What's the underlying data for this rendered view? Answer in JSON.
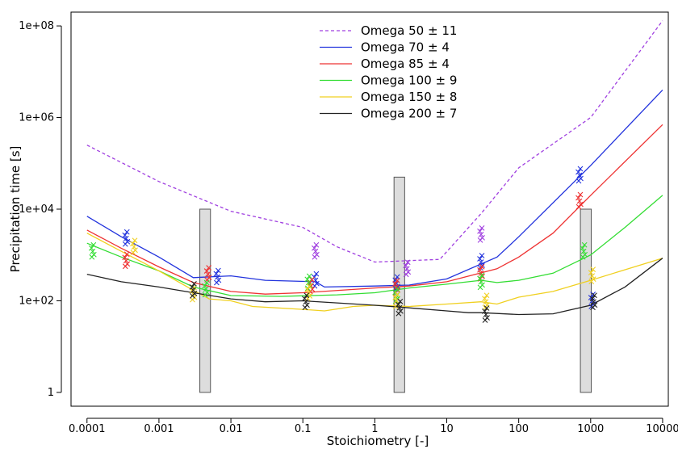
{
  "chart_data": {
    "type": "line",
    "xlabel": "Stoichiometry [-]",
    "ylabel": "Precipitation time [s]",
    "x_scale": "log",
    "y_scale": "log",
    "xlim": [
      6e-05,
      12000
    ],
    "ylim": [
      0.5,
      200000000
    ],
    "x_ticks": [
      {
        "value": 0.0001,
        "label": "0.0001"
      },
      {
        "value": 0.001,
        "label": "0.001"
      },
      {
        "value": 0.01,
        "label": "0.01"
      },
      {
        "value": 0.1,
        "label": "0.1"
      },
      {
        "value": 1,
        "label": "1"
      },
      {
        "value": 10,
        "label": "10"
      },
      {
        "value": 100,
        "label": "100"
      },
      {
        "value": 1000,
        "label": "1000"
      },
      {
        "value": 10000,
        "label": "10000"
      }
    ],
    "y_ticks": [
      {
        "value": 1,
        "label": "1"
      },
      {
        "value": 100,
        "label": "1e+02"
      },
      {
        "value": 10000,
        "label": "1e+04"
      },
      {
        "value": 1000000,
        "label": "1e+06"
      },
      {
        "value": 100000000,
        "label": "1e+08"
      }
    ],
    "grid": false,
    "legend_position": "top-center",
    "series": [
      {
        "name": "Omega 50 ± 11",
        "color": "#a040e0",
        "dash": "dashed",
        "line": [
          [
            0.0001,
            250000
          ],
          [
            0.001,
            40000
          ],
          [
            0.01,
            9000
          ],
          [
            0.1,
            4000
          ],
          [
            0.3,
            1500
          ],
          [
            1,
            700
          ],
          [
            8,
            800
          ],
          [
            30,
            8000
          ],
          [
            100,
            80000
          ],
          [
            1000,
            1000000
          ],
          [
            10000,
            130000000
          ]
        ],
        "points": [
          [
            0.15,
            1200
          ],
          [
            2.8,
            500
          ],
          [
            30,
            2800
          ]
        ]
      },
      {
        "name": "Omega 70 ± 4",
        "color": "#2233dd",
        "dash": "solid",
        "line": [
          [
            0.0001,
            7000
          ],
          [
            0.0003,
            2500
          ],
          [
            0.001,
            900
          ],
          [
            0.003,
            320
          ],
          [
            0.01,
            350
          ],
          [
            0.03,
            280
          ],
          [
            0.15,
            260
          ],
          [
            0.2,
            200
          ],
          [
            1,
            210
          ],
          [
            3,
            220
          ],
          [
            10,
            300
          ],
          [
            50,
            900
          ],
          [
            100,
            2500
          ],
          [
            1000,
            90000
          ],
          [
            10000,
            4000000
          ]
        ],
        "points": [
          [
            0.00035,
            2300
          ],
          [
            0.0065,
            330
          ],
          [
            0.15,
            280
          ],
          [
            2,
            240
          ],
          [
            30,
            700
          ],
          [
            700,
            55000
          ],
          [
            1050,
            100
          ]
        ]
      },
      {
        "name": "Omega 85 ± 4",
        "color": "#ee3333",
        "dash": "solid",
        "line": [
          [
            0.0001,
            3500
          ],
          [
            0.0003,
            1400
          ],
          [
            0.001,
            550
          ],
          [
            0.003,
            250
          ],
          [
            0.01,
            160
          ],
          [
            0.03,
            140
          ],
          [
            0.1,
            150
          ],
          [
            1,
            190
          ],
          [
            3,
            210
          ],
          [
            10,
            260
          ],
          [
            50,
            500
          ],
          [
            100,
            900
          ],
          [
            300,
            3000
          ],
          [
            1000,
            20000
          ],
          [
            10000,
            700000
          ]
        ],
        "points": [
          [
            0.00035,
            750
          ],
          [
            0.0048,
            380
          ],
          [
            0.13,
            210
          ],
          [
            2,
            200
          ],
          [
            30,
            400
          ],
          [
            700,
            15000
          ]
        ]
      },
      {
        "name": "Omega 100 ± 9",
        "color": "#33dd33",
        "dash": "solid",
        "line": [
          [
            0.0001,
            1800
          ],
          [
            0.0003,
            900
          ],
          [
            0.001,
            450
          ],
          [
            0.003,
            200
          ],
          [
            0.01,
            130
          ],
          [
            0.05,
            125
          ],
          [
            0.3,
            135
          ],
          [
            1,
            150
          ],
          [
            3,
            190
          ],
          [
            10,
            230
          ],
          [
            30,
            280
          ],
          [
            50,
            250
          ],
          [
            100,
            280
          ],
          [
            300,
            400
          ],
          [
            1000,
            1000
          ],
          [
            3000,
            4000
          ],
          [
            10000,
            20000
          ]
        ],
        "points": [
          [
            0.00012,
            1200
          ],
          [
            0.0045,
            180
          ],
          [
            0.12,
            250
          ],
          [
            2,
            130
          ],
          [
            30,
            260
          ],
          [
            800,
            1200
          ]
        ]
      },
      {
        "name": "Omega 150 ± 8",
        "color": "#f0d020",
        "dash": "solid",
        "line": [
          [
            0.0001,
            3000
          ],
          [
            0.0003,
            1200
          ],
          [
            0.001,
            450
          ],
          [
            0.003,
            170
          ],
          [
            0.005,
            110
          ],
          [
            0.01,
            100
          ],
          [
            0.02,
            75
          ],
          [
            0.1,
            65
          ],
          [
            0.2,
            60
          ],
          [
            0.5,
            75
          ],
          [
            1,
            80
          ],
          [
            3,
            75
          ],
          [
            10,
            85
          ],
          [
            30,
            95
          ],
          [
            50,
            85
          ],
          [
            100,
            120
          ],
          [
            300,
            160
          ],
          [
            1000,
            280
          ],
          [
            10000,
            850
          ]
        ],
        "points": [
          [
            0.00045,
            1500
          ],
          [
            0.003,
            140
          ],
          [
            0.12,
            150
          ],
          [
            2,
            100
          ],
          [
            35,
            95
          ],
          [
            1050,
            350
          ]
        ]
      },
      {
        "name": "Omega 200 ± 7",
        "color": "#222222",
        "dash": "solid",
        "line": [
          [
            0.0001,
            380
          ],
          [
            0.0003,
            260
          ],
          [
            0.001,
            200
          ],
          [
            0.003,
            150
          ],
          [
            0.01,
            110
          ],
          [
            0.03,
            95
          ],
          [
            0.1,
            100
          ],
          [
            0.3,
            90
          ],
          [
            1,
            80
          ],
          [
            3,
            70
          ],
          [
            10,
            60
          ],
          [
            20,
            55
          ],
          [
            30,
            55
          ],
          [
            100,
            50
          ],
          [
            300,
            52
          ],
          [
            1000,
            80
          ],
          [
            3000,
            200
          ],
          [
            10000,
            850
          ]
        ],
        "points": [
          [
            0.003,
            170
          ],
          [
            0.11,
            95
          ],
          [
            2.2,
            70
          ],
          [
            35,
            50
          ],
          [
            1100,
            95
          ]
        ]
      }
    ],
    "bars": [
      {
        "x_left": 0.0037,
        "x_right": 0.0052,
        "y_bottom": 1,
        "y_top": 10000
      },
      {
        "x_left": 1.85,
        "x_right": 2.6,
        "y_bottom": 1,
        "y_top": 50000
      },
      {
        "x_left": 720,
        "x_right": 1020,
        "y_bottom": 1,
        "y_top": 10000
      }
    ]
  }
}
